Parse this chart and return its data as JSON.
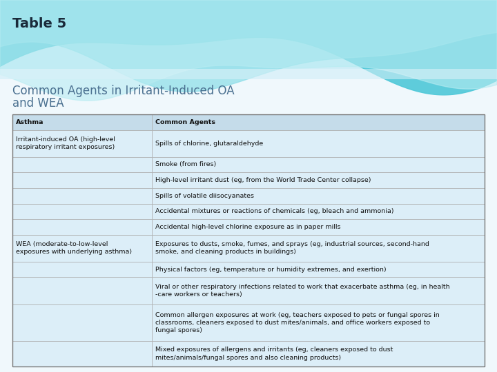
{
  "title": "Table 5",
  "subtitle_line1": "Common Agents in Irritant-Induced OA",
  "subtitle_line2": "and WEA",
  "header": [
    "Asthma",
    "Common Agents"
  ],
  "rows": [
    [
      "Irritant-induced OA (high-level\nrespiratory irritant exposures)",
      "Spills of chlorine, glutaraldehyde"
    ],
    [
      "",
      "Smoke (from fires)"
    ],
    [
      "",
      "High-level irritant dust (eg, from the World Trade Center collapse)"
    ],
    [
      "",
      "Spills of volatile diisocyanates"
    ],
    [
      "",
      "Accidental mixtures or reactions of chemicals (eg, bleach and ammonia)"
    ],
    [
      "",
      "Accidental high-level chlorine exposure as in paper mills"
    ],
    [
      "WEA (moderate-to-low-level\nexposures with underlying asthma)",
      "Exposures to dusts, smoke, fumes, and sprays (eg, industrial sources, second-hand\nsmoke, and cleaning products in buildings)"
    ],
    [
      "",
      "Physical factors (eg, temperature or humidity extremes, and exertion)"
    ],
    [
      "",
      "Viral or other respiratory infections related to work that exacerbate asthma (eg, in health\n-care workers or teachers)"
    ],
    [
      "",
      "Common allergen exposures at work (eg, teachers exposed to pets or fungal spores in\nclassrooms, cleaners exposed to dust mites/animals, and office workers exposed to\nfungal spores)"
    ],
    [
      "",
      "Mixed exposures of allergens and irritants (eg, cleaners exposed to dust\nmites/animals/fungal spores and also cleaning products)"
    ]
  ],
  "col_split": 0.295,
  "bg_color": "#f0f8fc",
  "header_bg": "#c5dcea",
  "row_bg": "#dceef8",
  "border_color": "#aaaaaa",
  "title_color": "#1a2a3a",
  "subtitle_color": "#4a7090",
  "text_color": "#111111",
  "wave_bg": "#d0eef7",
  "wave1_color": "#4ec8d8",
  "wave2_color": "#8adde8",
  "wave3_color": "#b8ecf2",
  "white_strip": "#e8f5fb"
}
